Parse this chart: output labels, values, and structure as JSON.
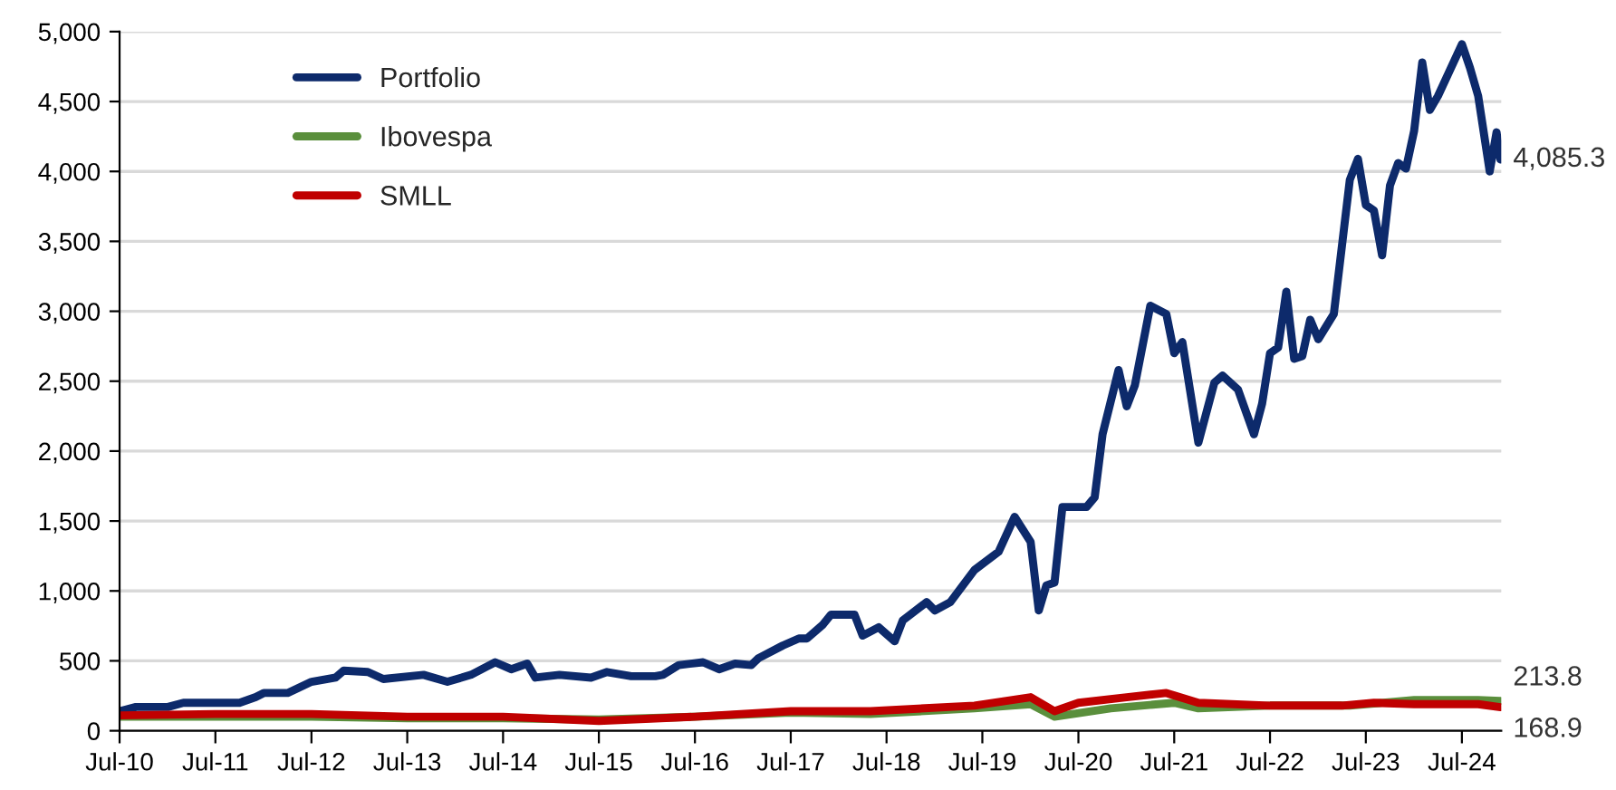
{
  "chart_data": {
    "type": "line",
    "xlim": [
      "2010-07",
      "2024-11-28"
    ],
    "ylim": [
      0,
      5000
    ],
    "xticks": [
      {
        "value": "2010-07",
        "label": "Jul-10"
      },
      {
        "value": "2011-07",
        "label": "Jul-11"
      },
      {
        "value": "2012-07",
        "label": "Jul-12"
      },
      {
        "value": "2013-07",
        "label": "Jul-13"
      },
      {
        "value": "2014-07",
        "label": "Jul-14"
      },
      {
        "value": "2015-07",
        "label": "Jul-15"
      },
      {
        "value": "2016-07",
        "label": "Jul-16"
      },
      {
        "value": "2017-07",
        "label": "Jul-17"
      },
      {
        "value": "2018-07",
        "label": "Jul-18"
      },
      {
        "value": "2019-07",
        "label": "Jul-19"
      },
      {
        "value": "2020-07",
        "label": "Jul-20"
      },
      {
        "value": "2021-07",
        "label": "Jul-21"
      },
      {
        "value": "2022-07",
        "label": "Jul-22"
      },
      {
        "value": "2023-07",
        "label": "Jul-23"
      },
      {
        "value": "2024-07",
        "label": "Jul-24"
      }
    ],
    "yticks": [
      0,
      500,
      {
        "value": 1000,
        "label": "1,000"
      },
      {
        "value": 1500,
        "label": "1,500"
      },
      {
        "value": 2000,
        "label": "2,000"
      },
      {
        "value": 2500,
        "label": "2,500"
      },
      {
        "value": 3000,
        "label": "3,000"
      },
      {
        "value": 3500,
        "label": "3,500"
      },
      {
        "value": 4000,
        "label": "4,000"
      },
      {
        "value": 4500,
        "label": "4,500"
      },
      {
        "value": 5000,
        "label": "5,000"
      }
    ],
    "grid": "y",
    "legend": "top left",
    "marker": "none",
    "line_style": "solid",
    "annotations": [
      {
        "text": "4,085.3",
        "x": "2024-11-25",
        "y": 4085.3
      },
      {
        "text": "213.8",
        "x": "2024-11-25",
        "y": 213.8
      },
      {
        "text": "168.9",
        "x": "2024-11-25",
        "y": 168.9
      }
    ],
    "series": [
      {
        "name": "Portfolio",
        "color": "#0d2a6b",
        "x": [
          "2010-07",
          "2010-09",
          "2010-11",
          "2011-01",
          "2011-03",
          "2011-07",
          "2011-10",
          "2011-12",
          "2012-01",
          "2012-04",
          "2012-07",
          "2012-10",
          "2012-11",
          "2013-02",
          "2013-04",
          "2013-09",
          "2013-12",
          "2014-03",
          "2014-05",
          "2014-06",
          "2014-08",
          "2014-10",
          "2014-11",
          "2015-02",
          "2015-06",
          "2015-08",
          "2015-11",
          "2016-02",
          "2016-03",
          "2016-05",
          "2016-08",
          "2016-10",
          "2016-12",
          "2017-02",
          "2017-03",
          "2017-06",
          "2017-08",
          "2017-09",
          "2017-11",
          "2017-12",
          "2018-03",
          "2018-04",
          "2018-06",
          "2018-08",
          "2018-09",
          "2018-12",
          "2019-01",
          "2019-03",
          "2019-06",
          "2019-09",
          "2019-11",
          "2020-01",
          "2020-02",
          "2020-03",
          "2020-04",
          "2020-05",
          "2020-08",
          "2020-09",
          "2020-10",
          "2020-12",
          "2021-01",
          "2021-02",
          "2021-04",
          "2021-06",
          "2021-07",
          "2021-08",
          "2021-10",
          "2021-12",
          "2022-01",
          "2022-03",
          "2022-05",
          "2022-06",
          "2022-07",
          "2022-08",
          "2022-09",
          "2022-10",
          "2022-11",
          "2022-12",
          "2023-01",
          "2023-03",
          "2023-05",
          "2023-06",
          "2023-07",
          "2023-08",
          "2023-09",
          "2023-10",
          "2023-11",
          "2023-12",
          "2024-01",
          "2024-02",
          "2024-03",
          "2024-04",
          "2024-07",
          "2024-08",
          "2024-09",
          "2024-10-15",
          "2024-11-10",
          "2024-11-25"
        ],
        "values": [
          140,
          170,
          170,
          170,
          200,
          200,
          200,
          240,
          270,
          270,
          350,
          380,
          430,
          420,
          370,
          400,
          350,
          400,
          460,
          490,
          440,
          480,
          380,
          400,
          380,
          420,
          390,
          390,
          400,
          470,
          490,
          440,
          480,
          470,
          520,
          610,
          660,
          660,
          760,
          830,
          830,
          680,
          740,
          640,
          790,
          920,
          860,
          920,
          1150,
          1280,
          1530,
          1350,
          860,
          1040,
          1060,
          1600,
          1600,
          1670,
          2120,
          2580,
          2320,
          2470,
          3040,
          2980,
          2700,
          2780,
          2060,
          2490,
          2540,
          2440,
          2120,
          2340,
          2700,
          2740,
          3140,
          2660,
          2680,
          2940,
          2800,
          2980,
          3940,
          4090,
          3760,
          3720,
          3400,
          3900,
          4060,
          4020,
          4290,
          4780,
          4440,
          4540,
          4910,
          4740,
          4540,
          4000,
          4280,
          4085.3
        ]
      },
      {
        "name": "Ibovespa",
        "color": "#5a8f3c",
        "x": [
          "2010-07",
          "2011-07",
          "2012-07",
          "2013-07",
          "2014-07",
          "2015-07",
          "2016-07",
          "2017-07",
          "2018-05",
          "2019-06",
          "2020-01",
          "2020-04",
          "2020-11",
          "2021-07",
          "2021-10",
          "2022-07",
          "2023-05",
          "2024-01",
          "2024-09",
          "2024-11-25"
        ],
        "values": [
          100,
          100,
          100,
          90,
          90,
          80,
          100,
          130,
          120,
          160,
          190,
          100,
          160,
          200,
          160,
          180,
          180,
          220,
          220,
          213.8
        ]
      },
      {
        "name": "SMLL",
        "color": "#c00000",
        "x": [
          "2010-07",
          "2011-07",
          "2012-07",
          "2013-07",
          "2014-07",
          "2015-07",
          "2016-07",
          "2017-07",
          "2018-05",
          "2019-06",
          "2020-01",
          "2020-04",
          "2020-07",
          "2021-01",
          "2021-06",
          "2021-10",
          "2022-07",
          "2023-04",
          "2023-08",
          "2024-01",
          "2024-09",
          "2024-11-25"
        ],
        "values": [
          110,
          120,
          120,
          100,
          100,
          70,
          100,
          140,
          140,
          180,
          240,
          140,
          200,
          240,
          270,
          200,
          180,
          180,
          200,
          190,
          190,
          168.9
        ]
      }
    ]
  }
}
